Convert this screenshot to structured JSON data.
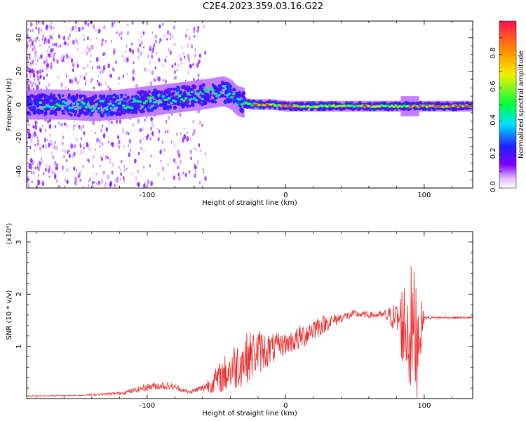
{
  "title": "C2E4.2023.359.03.16.G22",
  "chart_data": [
    {
      "type": "heatmap",
      "xlabel": "Height of straight line (km)",
      "ylabel": "Frequency (Hz)",
      "xlim": [
        -187,
        135
      ],
      "ylim": [
        -50,
        50
      ],
      "x_ticks": [
        -100,
        0,
        100
      ],
      "y_ticks": [
        -40,
        -20,
        0,
        20,
        40
      ],
      "colorbar": {
        "label": "Normalized spectral amplitude",
        "range": [
          0,
          1
        ],
        "ticks": [
          "0.0",
          "0.2",
          "0.4",
          "0.6",
          "0.8"
        ]
      },
      "ridge": {
        "x": [
          -187,
          -160,
          -140,
          -120,
          -100,
          -80,
          -60,
          -45,
          -40,
          -35,
          -25,
          -10,
          0,
          20,
          40,
          60,
          80,
          90,
          95,
          110,
          135
        ],
        "freq": [
          0,
          0,
          -1,
          0,
          2,
          4,
          6,
          8,
          6,
          2,
          0,
          0,
          -1,
          -1,
          -1,
          -1,
          -1,
          -1,
          -1,
          -1,
          -1
        ]
      }
    },
    {
      "type": "line",
      "xlabel": "Height of straight line (km)",
      "ylabel": "SNR (10 * v/v)",
      "scale_label": "(x10⁴)",
      "xlim": [
        -187,
        135
      ],
      "ylim": [
        0,
        3.2
      ],
      "x_ticks": [
        -100,
        0,
        100
      ],
      "y_ticks": [
        1,
        2,
        3
      ],
      "series": [
        {
          "color": "#e83030",
          "x": [
            -187,
            -150,
            -120,
            -110,
            -100,
            -90,
            -80,
            -70,
            -60,
            -50,
            -40,
            -30,
            -20,
            -10,
            0,
            10,
            20,
            30,
            40,
            50,
            60,
            70,
            80,
            85,
            90,
            95,
            100,
            110,
            120,
            135
          ],
          "y": [
            0.05,
            0.06,
            0.1,
            0.15,
            0.22,
            0.25,
            0.22,
            0.12,
            0.2,
            0.35,
            0.55,
            0.75,
            0.9,
            0.95,
            1.05,
            1.15,
            1.35,
            1.45,
            1.55,
            1.62,
            1.6,
            1.6,
            1.55,
            1.4,
            1.3,
            1.2,
            1.55,
            1.55,
            1.55,
            1.55
          ],
          "noise": [
            0.01,
            0.01,
            0.03,
            0.05,
            0.07,
            0.08,
            0.06,
            0.03,
            0.08,
            0.25,
            0.45,
            0.5,
            0.45,
            0.3,
            0.2,
            0.25,
            0.25,
            0.15,
            0.1,
            0.08,
            0.06,
            0.08,
            0.3,
            0.9,
            1.3,
            1.2,
            0.03,
            0.02,
            0.02,
            0.02
          ]
        }
      ]
    }
  ]
}
